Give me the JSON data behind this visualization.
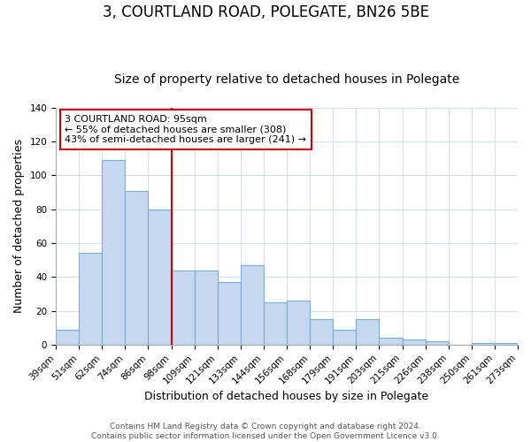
{
  "title": "3, COURTLAND ROAD, POLEGATE, BN26 5BE",
  "subtitle": "Size of property relative to detached houses in Polegate",
  "xlabel": "Distribution of detached houses by size in Polegate",
  "ylabel": "Number of detached properties",
  "bar_labels": [
    "39sqm",
    "51sqm",
    "62sqm",
    "74sqm",
    "86sqm",
    "98sqm",
    "109sqm",
    "121sqm",
    "133sqm",
    "144sqm",
    "156sqm",
    "168sqm",
    "179sqm",
    "191sqm",
    "203sqm",
    "215sqm",
    "226sqm",
    "238sqm",
    "250sqm",
    "261sqm",
    "273sqm"
  ],
  "bar_heights": [
    9,
    54,
    109,
    91,
    80,
    44,
    44,
    37,
    47,
    25,
    26,
    15,
    9,
    15,
    4,
    3,
    2,
    0,
    1,
    1
  ],
  "bar_color": "#c5d8f0",
  "bar_edge_color": "#7aadd4",
  "vline_color": "#cc0000",
  "vline_pos": 5,
  "ylim": [
    0,
    140
  ],
  "annotation_text": "3 COURTLAND ROAD: 95sqm\n← 55% of detached houses are smaller (308)\n43% of semi-detached houses are larger (241) →",
  "annotation_box_color": "#ffffff",
  "annotation_box_edge": "#cc0000",
  "footer1": "Contains HM Land Registry data © Crown copyright and database right 2024.",
  "footer2": "Contains public sector information licensed under the Open Government Licence v3.0.",
  "title_fontsize": 12,
  "subtitle_fontsize": 10,
  "label_fontsize": 9,
  "tick_fontsize": 7.5,
  "annotation_fontsize": 8,
  "footer_fontsize": 6.5
}
